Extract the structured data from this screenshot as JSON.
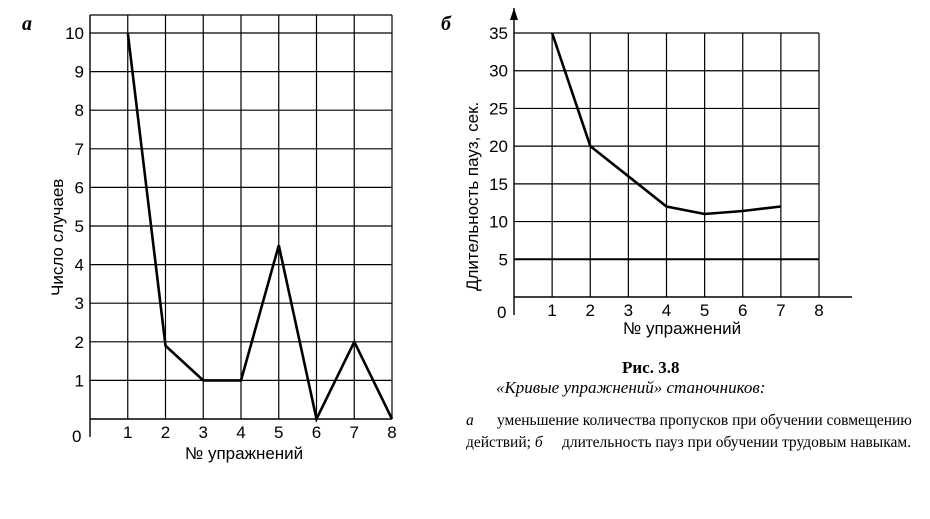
{
  "caption": {
    "title": "Рис. 3.8",
    "subtitle": "«Кривые упражнений» станочников:",
    "letter_a": "а",
    "text_a": "уменьшение количества пропусков при обучении совмещению действий;",
    "letter_b": "б",
    "text_b": "длительность пауз при обучении трудовым навыкам."
  },
  "chart_data": [
    {
      "type": "line",
      "panel_label": "а",
      "xlabel": "№ упражнений",
      "ylabel": "Число случаев",
      "x": [
        1,
        2,
        3,
        4,
        5,
        6,
        7,
        8
      ],
      "series": [
        {
          "values": [
            10,
            1.9,
            1,
            1,
            4.5,
            0,
            2,
            0
          ]
        }
      ],
      "xlim": [
        0,
        8
      ],
      "ylim": [
        0,
        10
      ],
      "xticks": [
        "1",
        "2",
        "3",
        "4",
        "5",
        "6",
        "7",
        "8"
      ],
      "yticks": [
        "0",
        "1",
        "2",
        "3",
        "4",
        "5",
        "6",
        "7",
        "8",
        "9",
        "10"
      ],
      "grid": true
    },
    {
      "type": "line",
      "panel_label": "б",
      "xlabel": "№ упражнений",
      "ylabel": "Длительность пауз, сек.",
      "x": [
        1,
        2,
        3,
        4,
        5,
        6,
        7
      ],
      "series": [
        {
          "values": [
            35,
            20,
            16,
            12,
            11,
            11.4,
            12
          ]
        }
      ],
      "reference_line_y": 5,
      "xlim": [
        0,
        8
      ],
      "ylim": [
        0,
        35
      ],
      "xticks": [
        "1",
        "2",
        "3",
        "4",
        "5",
        "6",
        "7",
        "8"
      ],
      "yticks": [
        "0",
        "5",
        "10",
        "15",
        "20",
        "25",
        "30",
        "35"
      ],
      "grid": true
    }
  ]
}
